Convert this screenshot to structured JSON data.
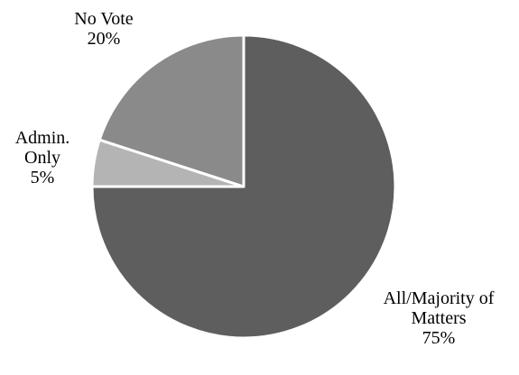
{
  "chart_data": {
    "type": "pie",
    "title": "",
    "start_angle_deg": 0,
    "direction": "clockwise",
    "slices": [
      {
        "label": [
          "All/Majority of",
          "Matters"
        ],
        "value": 75,
        "value_label": "75%",
        "color": "#5e5e5e"
      },
      {
        "label": [
          "Admin.",
          "Only"
        ],
        "value": 5,
        "value_label": "5%",
        "color": "#b4b4b4"
      },
      {
        "label": [
          "No Vote"
        ],
        "value": 20,
        "value_label": "20%",
        "color": "#8a8a8a"
      }
    ],
    "slice_border_color": "#ffffff",
    "legend": "none"
  }
}
